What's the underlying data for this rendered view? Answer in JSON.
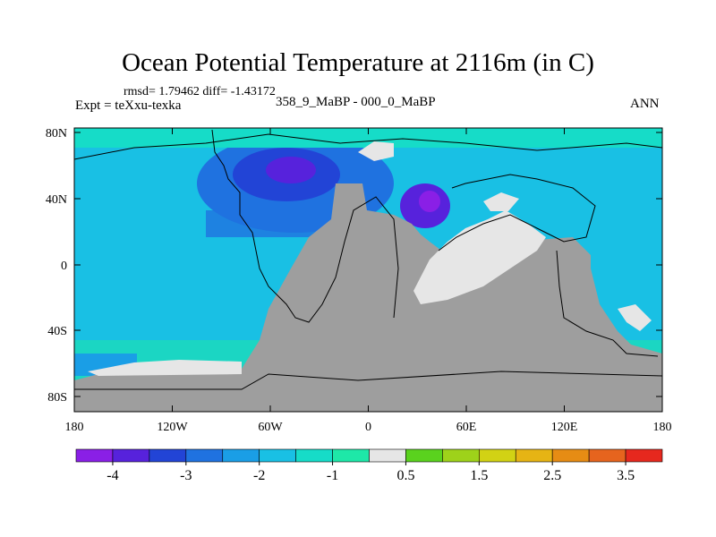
{
  "title": "Ocean Potential Temperature at 2116m (in C)",
  "stats_line": "rmsd= 1.79462 diff= -1.43172",
  "experiment_label": "Expt = teXxu-texka",
  "difference_label": "358_9_MaBP - 000_0_MaBP",
  "season_label": "ANN",
  "axes": {
    "lat_ticks": [
      "80N",
      "40N",
      "0",
      "40S",
      "80S"
    ],
    "lon_ticks": [
      "180",
      "120W",
      "60W",
      "0",
      "60E",
      "120E",
      "180"
    ]
  },
  "colorbar": {
    "colors": [
      "#8a1fe6",
      "#5722dc",
      "#2244d6",
      "#1f72e0",
      "#1a9ee6",
      "#19c0e4",
      "#16dcc8",
      "#1ee8a8",
      "#e6e6e6",
      "#5ad21e",
      "#9ed21a",
      "#d2d214",
      "#e6b414",
      "#e68c14",
      "#e6641e",
      "#e6281e"
    ],
    "labels": [
      "-4",
      "-3",
      "-2",
      "-1",
      "0.5",
      "1.5",
      "2.5",
      "3.5"
    ]
  },
  "map_colors": {
    "land": "#9e9e9e",
    "ocean": "#19c0e4",
    "neutral": "#e6e6e6"
  }
}
